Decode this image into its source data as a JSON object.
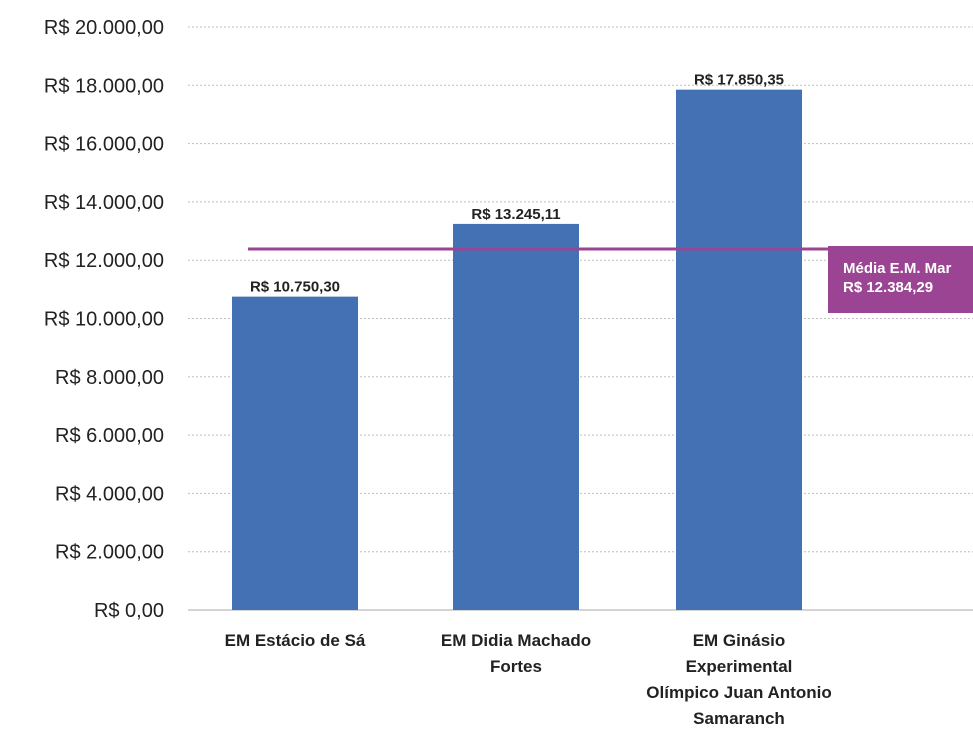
{
  "chart_data": {
    "type": "bar",
    "categories": [
      "EM Estácio de Sá",
      "EM Didia Machado Fortes",
      "EM Ginásio Experimental Olímpico Juan Antonio Samaranch"
    ],
    "category_lines": [
      [
        "EM Estácio de Sá"
      ],
      [
        "EM Didia Machado",
        "Fortes"
      ],
      [
        "EM Ginásio",
        "Experimental",
        "Olímpico Juan Antonio",
        "Samaranch"
      ]
    ],
    "values": [
      10750.3,
      13245.11,
      17850.35
    ],
    "data_labels": [
      "R$ 10.750,30",
      "R$ 13.245,11",
      "R$ 17.850,35"
    ],
    "ylim": [
      0,
      20000
    ],
    "yticks": [
      0,
      2000,
      4000,
      6000,
      8000,
      10000,
      12000,
      14000,
      16000,
      18000,
      20000
    ],
    "ytick_labels": [
      "R$ 0,00",
      "R$ 2.000,00",
      "R$ 4.000,00",
      "R$ 6.000,00",
      "R$ 8.000,00",
      "R$ 10.000,00",
      "R$ 12.000,00",
      "R$ 14.000,00",
      "R$ 16.000,00",
      "R$ 18.000,00",
      "R$ 20.000,00"
    ],
    "grid": true,
    "reference_line": {
      "value": 12384.29,
      "label_lines": [
        "Média E.M. Mar",
        "R$ 12.384,29"
      ]
    },
    "colors": {
      "bar": "#4470B4",
      "average": "#9B4493",
      "grid": "#BFBFBF",
      "axis": "#AAAAAA"
    }
  }
}
